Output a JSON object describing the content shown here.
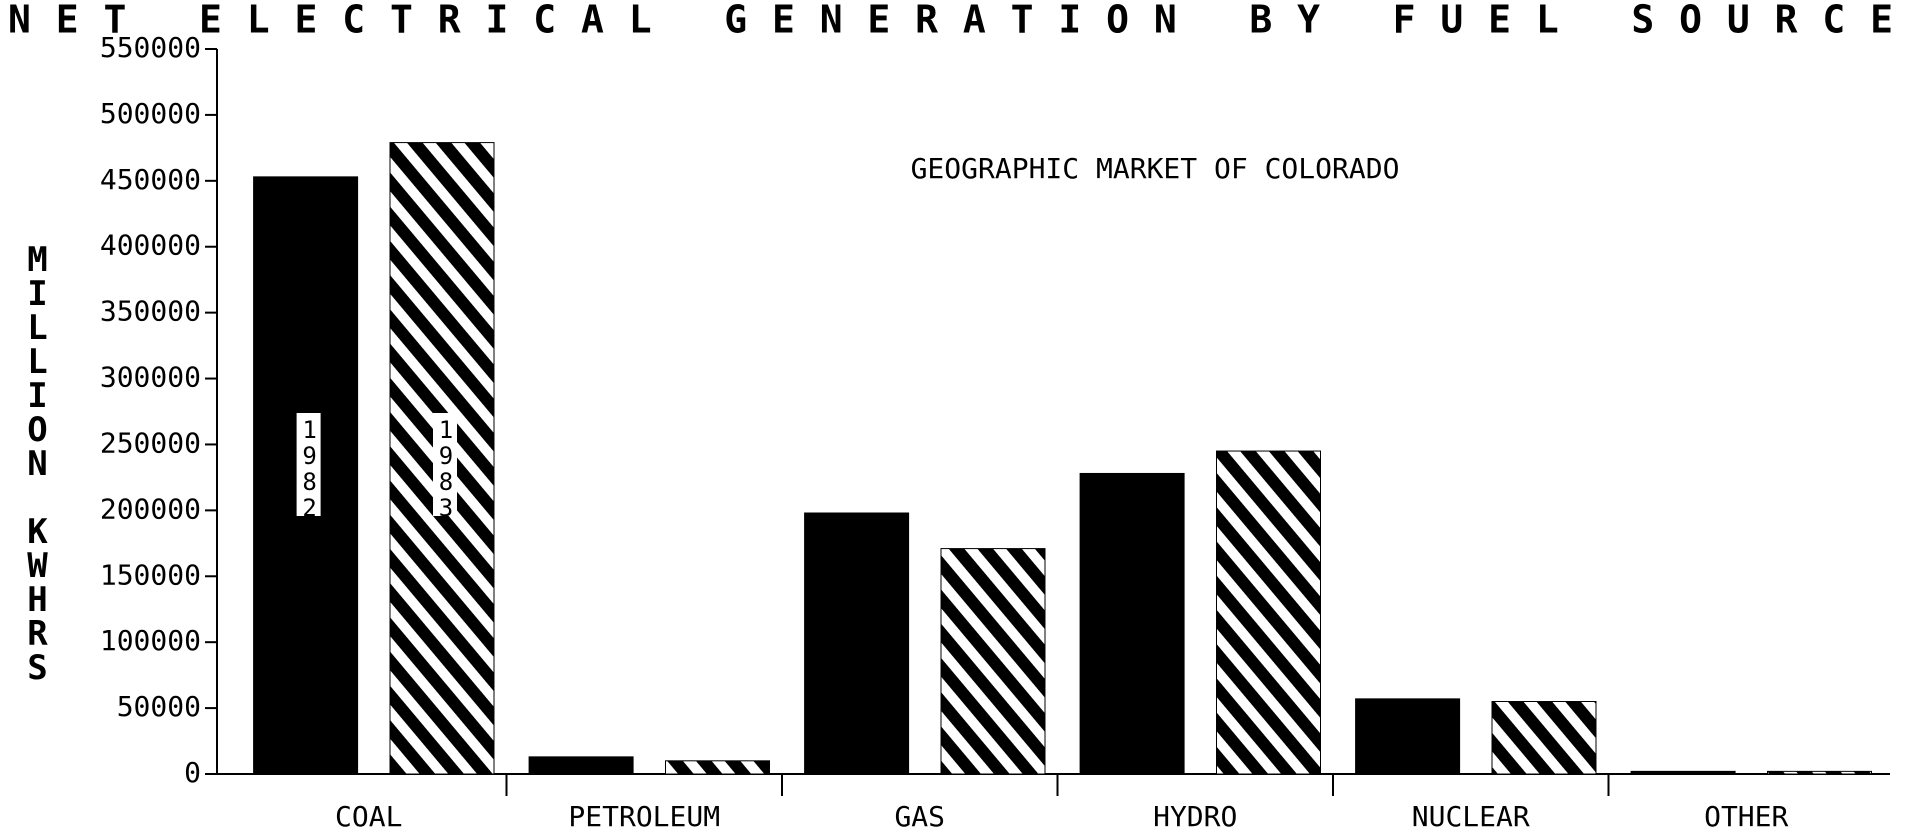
{
  "chart_data": {
    "type": "bar",
    "title": "NET ELECTRICAL GENERATION BY FUEL SOURCE",
    "subtitle": "GEOGRAPHIC MARKET OF COLORADO",
    "y_label": "MILLION KWHRS",
    "categories": [
      "COAL",
      "PETROLEUM",
      "GAS",
      "HYDRO",
      "NUCLEAR",
      "OTHER"
    ],
    "series": [
      {
        "name": "1982",
        "color": "#000000",
        "hatch": "solid",
        "values": [
          453000,
          13000,
          198000,
          228000,
          57000,
          2000
        ]
      },
      {
        "name": "1983",
        "color": "#000000",
        "hatch": "diagonal",
        "values": [
          479000,
          10000,
          171000,
          245000,
          55000,
          2000
        ]
      }
    ],
    "ylim": [
      0,
      550000
    ],
    "yticks": [
      0,
      50000,
      100000,
      150000,
      200000,
      250000,
      300000,
      350000,
      400000,
      450000,
      500000,
      550000
    ]
  }
}
